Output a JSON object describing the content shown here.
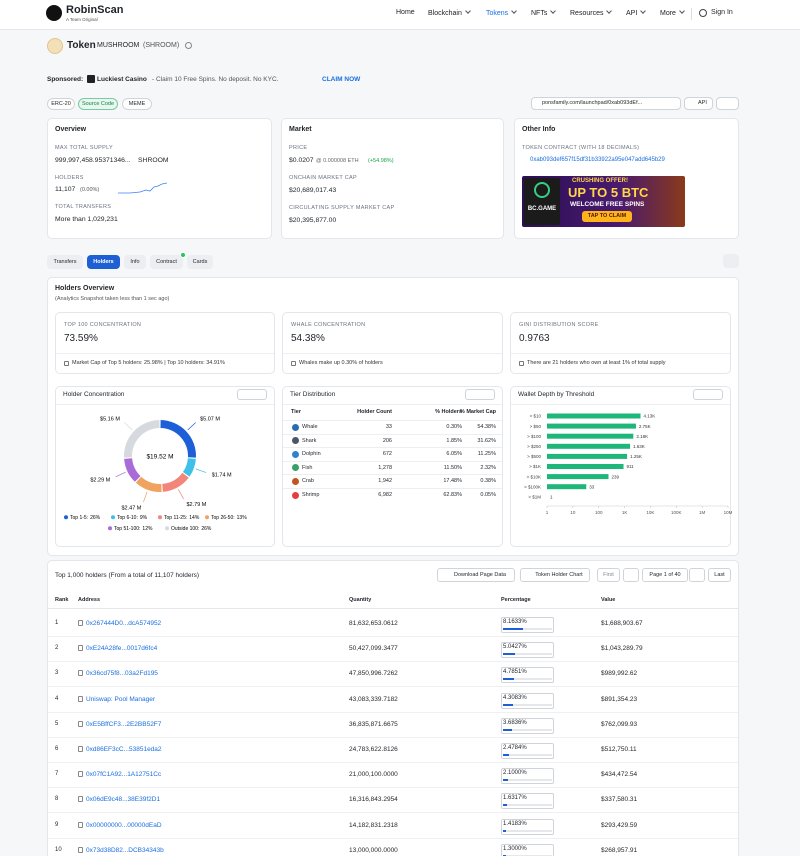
{
  "nav": {
    "brand": "RobinScan",
    "tagline": "A Team Original",
    "links": [
      "Home",
      "Blockchain",
      "Tokens",
      "NFTs",
      "Resources",
      "API",
      "More"
    ],
    "sign_in": "Sign In"
  },
  "token": {
    "label": "Token",
    "name": "MUSHROOM",
    "symbol": "(SHROOM)"
  },
  "sponsored": {
    "label": "Sponsored:",
    "name": "Luckiest Casino",
    "text": "- Claim 10 Free Spins. No deposit. No KYC.",
    "cta": "CLAIM NOW"
  },
  "tags": [
    "ERC-20",
    "Source Code",
    "MEME"
  ],
  "toolbar": {
    "link": "ponsfamily.com/launchpad/0xab093dEf...",
    "api": "API"
  },
  "overview": {
    "title": "Overview",
    "max_supply_label": "MAX TOTAL SUPPLY",
    "max_supply": "999,997,458.95371346...",
    "max_supply_unit": "SHROOM",
    "holders_label": "HOLDERS",
    "holders": "11,107",
    "holders_change": "(0.00%)",
    "transfers_label": "TOTAL TRANSFERS",
    "transfers": "More than 1,029,231"
  },
  "market": {
    "title": "Market",
    "price_label": "PRICE",
    "price": "$0.0207",
    "price_eth": "@ 0.000008 ETH",
    "price_change": "(+54.98%)",
    "mcap_label": "ONCHAIN MARKET CAP",
    "mcap": "$20,689,017.43",
    "circ_label": "CIRCULATING SUPPLY MARKET CAP",
    "circ": "$20,395,877.00"
  },
  "other": {
    "title": "Other Info",
    "contract_label": "TOKEN CONTRACT (WITH 18 DECIMALS)",
    "contract": "0xab093def657f15df31b33922a95e047add645b29",
    "ad": {
      "brand": "BC.GAME",
      "kicker": "CRUSHING OFFER!",
      "headline": "UP TO 5 BTC",
      "sub": "WELCOME FREE SPINS",
      "button": "TAP TO CLAIM"
    }
  },
  "tabs": [
    "Transfers",
    "Holders",
    "Info",
    "Contract",
    "Cards"
  ],
  "holders_overview": {
    "title": "Holders Overview",
    "subtitle": "(Analytics Snapshot taken less than 1 sec ago)",
    "stats": [
      {
        "label": "TOP 100 CONCENTRATION",
        "value": "73.59%",
        "note": "Market Cap of Top 5 holders: 25.98% | Top 10 holders: 34.91%"
      },
      {
        "label": "WHALE CONCENTRATION",
        "value": "54.38%",
        "note": "Whales make up 0.30% of holders"
      },
      {
        "label": "GINI DISTRIBUTION SCORE",
        "value": "0.9763",
        "note": "There are 21 holders who own at least 1% of total supply"
      }
    ]
  },
  "concentration": {
    "title": "Holder Concentration",
    "total": "$19.52 M",
    "segments": [
      {
        "name": "Top 1-5:",
        "pct": 26,
        "pct_label": "26%",
        "amount": "$5.07 M",
        "color": "#1d5fd6"
      },
      {
        "name": "Top 6-10:",
        "pct": 9,
        "pct_label": "9%",
        "amount": "$1.74 M",
        "color": "#3ec0e8"
      },
      {
        "name": "Top 11-25:",
        "pct": 14,
        "pct_label": "14%",
        "amount": "$2.79 M",
        "color": "#f2867a"
      },
      {
        "name": "Top 26-50:",
        "pct": 13,
        "pct_label": "13%",
        "amount": "$2.47 M",
        "color": "#f0a35e"
      },
      {
        "name": "Top 51-100:",
        "pct": 12,
        "pct_label": "12%",
        "amount": "$2.29 M",
        "color": "#a96bd8"
      },
      {
        "name": "Outside 100:",
        "pct": 26,
        "pct_label": "26%",
        "amount": "$5.16 M",
        "color": "#d6d9de"
      }
    ]
  },
  "tiers": {
    "title": "Tier Distribution",
    "headers": [
      "Tier",
      "Holder Count",
      "% Holders",
      "% Market Cap"
    ],
    "rows": [
      [
        "Whale",
        "33",
        "0.30%",
        "54.38%"
      ],
      [
        "Shark",
        "206",
        "1.85%",
        "31.62%"
      ],
      [
        "Dolphin",
        "672",
        "6.05%",
        "11.25%"
      ],
      [
        "Fish",
        "1,278",
        "11.50%",
        "2.32%"
      ],
      [
        "Crab",
        "1,942",
        "17.48%",
        "0.38%"
      ],
      [
        "Shrimp",
        "6,982",
        "62.83%",
        "0.05%"
      ]
    ]
  },
  "chart_data": {
    "type": "bar",
    "title": "Wallet Depth by Threshold",
    "orientation": "horizontal",
    "log_scale": true,
    "grid": false,
    "color": "#1fb67a",
    "categories": [
      "> $10",
      "> $50",
      "> $100",
      "> $250",
      "> $500",
      "> $1K",
      "> $10K",
      "> $100K",
      "> $1M"
    ],
    "values": [
      4130,
      2750,
      2180,
      1630,
      1250,
      911,
      239,
      33,
      1
    ],
    "value_labels": [
      "4.13K",
      "2.75K",
      "2.18K",
      "1.63K",
      "1.25K",
      "911",
      "239",
      "33",
      "1"
    ],
    "xlim": [
      1,
      10000000
    ],
    "xticks": [
      1,
      10,
      100,
      {
        "value": 1000,
        "label": "1K"
      },
      {
        "value": 10000,
        "label": "10K"
      },
      {
        "value": 100000,
        "label": "100K"
      },
      {
        "value": 1000000,
        "label": "1M"
      },
      {
        "value": 10000000,
        "label": "10M"
      }
    ]
  },
  "holders_table": {
    "title": "Top 1,000 holders (From a total of 11,107 holders)",
    "buttons": [
      "Download Page Data",
      "Token Holder Chart"
    ],
    "pager": [
      "First",
      "Page 1 of 40",
      "Last"
    ],
    "headers": [
      "Rank",
      "Address",
      "Quantity",
      "Percentage",
      "Value"
    ],
    "rows": [
      {
        "rank": 1,
        "address": "0x267444D0...dcA574952",
        "quantity": "81,632,653.0612",
        "percentage": {
          "value": 8.1633,
          "label": "8.1633%"
        },
        "value": "$1,688,903.67"
      },
      {
        "rank": 2,
        "address": "0xE24A28fe...0017d6fc4",
        "quantity": "50,427,099.3477",
        "percentage": {
          "value": 5.0427,
          "label": "5.0427%"
        },
        "value": "$1,043,289.79"
      },
      {
        "rank": 3,
        "address": "0x36cd75f8...03a2Fd195",
        "quantity": "47,850,996.7262",
        "percentage": {
          "value": 4.7851,
          "label": "4.7851%"
        },
        "value": "$989,992.62"
      },
      {
        "rank": 4,
        "address": "Uniswap: Pool Manager",
        "quantity": "43,083,339.7182",
        "percentage": {
          "value": 4.3083,
          "label": "4.3083%"
        },
        "value": "$891,354.23"
      },
      {
        "rank": 5,
        "address": "0xE5BffCF3...2E2BB52F7",
        "quantity": "36,835,871.6675",
        "percentage": {
          "value": 3.6836,
          "label": "3.6836%"
        },
        "value": "$762,099.93"
      },
      {
        "rank": 6,
        "address": "0xd86EF3cC...53851eda2",
        "quantity": "24,783,622.8126",
        "percentage": {
          "value": 2.4784,
          "label": "2.4784%"
        },
        "value": "$512,750.11"
      },
      {
        "rank": 7,
        "address": "0x07fC1A92...1A12751Cc",
        "quantity": "21,000,100.0000",
        "percentage": {
          "value": 2.1,
          "label": "2.1000%"
        },
        "value": "$434,472.54"
      },
      {
        "rank": 8,
        "address": "0x06dE9c48...38E39f2D1",
        "quantity": "16,316,843.2954",
        "percentage": {
          "value": 1.6317,
          "label": "1.6317%"
        },
        "value": "$337,580.31"
      },
      {
        "rank": 9,
        "address": "0x00000000...00000dEaD",
        "quantity": "14,182,831.2318",
        "percentage": {
          "value": 1.4183,
          "label": "1.4183%"
        },
        "value": "$293,429.59"
      },
      {
        "rank": 10,
        "address": "0x73d38D82...DCB34343b",
        "quantity": "13,000,000.0000",
        "percentage": {
          "value": 1.3,
          "label": "1.3000%"
        },
        "value": "$268,957.91"
      }
    ]
  }
}
